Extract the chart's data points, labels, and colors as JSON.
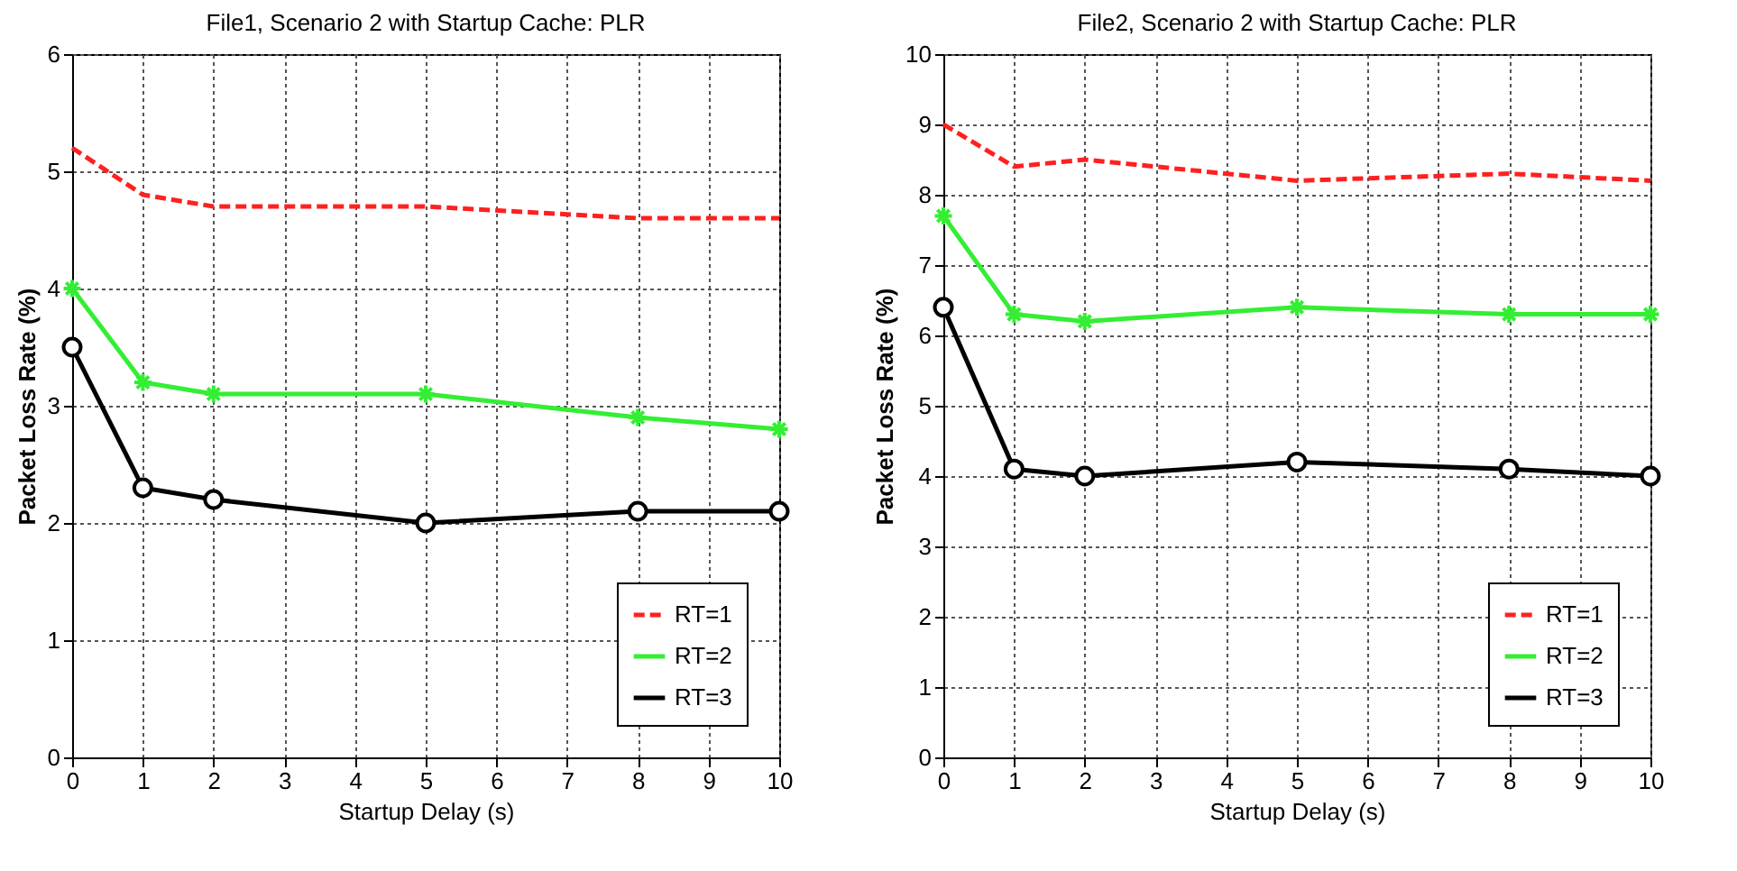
{
  "chart_data": [
    {
      "type": "line",
      "title": "File1, Scenario 2 with Startup Cache: PLR",
      "xlabel": "Startup Delay (s)",
      "ylabel": "Packet Loss Rate (%)",
      "x": [
        0,
        1,
        2,
        5,
        8,
        10
      ],
      "series": [
        {
          "name": "RT=1",
          "color": "#ff2020",
          "values": [
            5.2,
            4.8,
            4.7,
            4.7,
            4.6,
            4.6
          ],
          "marker": "none",
          "line_style": "dashed"
        },
        {
          "name": "RT=2",
          "color": "#33ee33",
          "values": [
            4.0,
            3.2,
            3.1,
            3.1,
            2.9,
            2.8
          ],
          "marker": "cross",
          "line_style": "solid"
        },
        {
          "name": "RT=3",
          "color": "#000000",
          "values": [
            3.5,
            2.3,
            2.2,
            2.0,
            2.1,
            2.1
          ],
          "marker": "circle",
          "line_style": "solid"
        }
      ],
      "xlim": [
        0,
        10
      ],
      "xticks": [
        0,
        1,
        2,
        3,
        4,
        5,
        6,
        7,
        8,
        9,
        10
      ],
      "ylim": [
        0,
        6
      ],
      "yticks": [
        0,
        1,
        2,
        3,
        4,
        5,
        6
      ],
      "grid": true,
      "legend": "bottom right"
    },
    {
      "type": "line",
      "title": "File2, Scenario 2 with Startup Cache: PLR",
      "xlabel": "Startup Delay (s)",
      "ylabel": "Packet Loss Rate (%)",
      "x": [
        0,
        1,
        2,
        5,
        8,
        10
      ],
      "series": [
        {
          "name": "RT=1",
          "color": "#ff2020",
          "values": [
            9.0,
            8.4,
            8.5,
            8.2,
            8.3,
            8.2
          ],
          "marker": "none",
          "line_style": "dashed"
        },
        {
          "name": "RT=2",
          "color": "#33ee33",
          "values": [
            7.7,
            6.3,
            6.2,
            6.4,
            6.3,
            6.3
          ],
          "marker": "cross",
          "line_style": "solid"
        },
        {
          "name": "RT=3",
          "color": "#000000",
          "values": [
            6.4,
            4.1,
            4.0,
            4.2,
            4.1,
            4.0
          ],
          "marker": "circle",
          "line_style": "solid"
        }
      ],
      "xlim": [
        0,
        10
      ],
      "xticks": [
        0,
        1,
        2,
        3,
        4,
        5,
        6,
        7,
        8,
        9,
        10
      ],
      "ylim": [
        0,
        10
      ],
      "yticks": [
        0,
        1,
        2,
        3,
        4,
        5,
        6,
        7,
        8,
        9,
        10
      ],
      "grid": true,
      "legend": "bottom right"
    }
  ]
}
